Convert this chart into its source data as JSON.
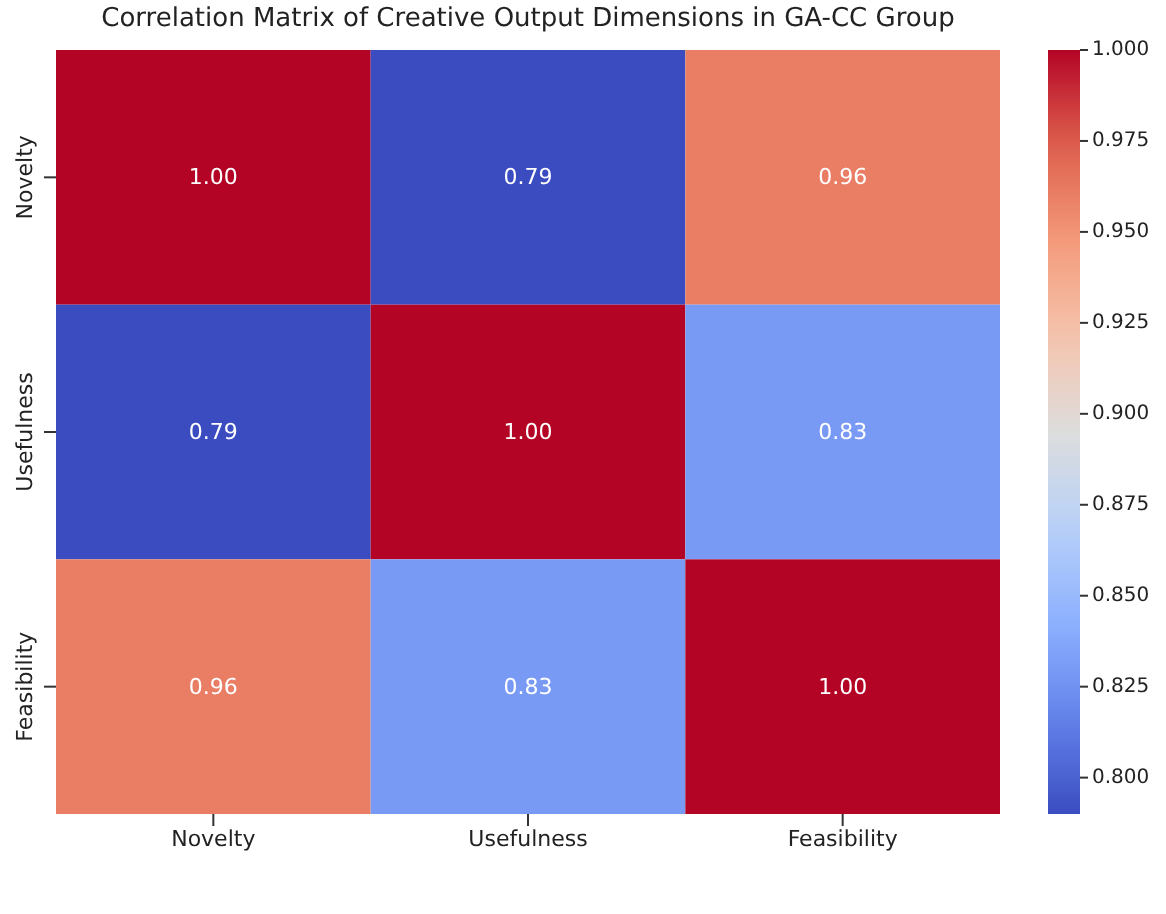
{
  "chart_data": {
    "type": "heatmap",
    "title": "Correlation Matrix of Creative Output Dimensions in GA-CC Group",
    "categories": [
      "Novelty",
      "Usefulness",
      "Feasibility"
    ],
    "y_categories": [
      "Novelty",
      "Usefulness",
      "Feasibility"
    ],
    "cells": [
      [
        1.0,
        0.79,
        0.96
      ],
      [
        0.79,
        1.0,
        0.83
      ],
      [
        0.96,
        0.83,
        1.0
      ]
    ],
    "cell_labels": [
      [
        "1.00",
        "0.79",
        "0.96"
      ],
      [
        "0.79",
        "1.00",
        "0.83"
      ],
      [
        "0.96",
        "0.83",
        "1.00"
      ]
    ],
    "clim": [
      0.79,
      1.0
    ],
    "cticks": [
      {
        "value": 0.8,
        "label": "0.800"
      },
      {
        "value": 0.825,
        "label": "0.825"
      },
      {
        "value": 0.85,
        "label": "0.850"
      },
      {
        "value": 0.875,
        "label": "0.875"
      },
      {
        "value": 0.9,
        "label": "0.900"
      },
      {
        "value": 0.925,
        "label": "0.925"
      },
      {
        "value": 0.95,
        "label": "0.950"
      },
      {
        "value": 0.975,
        "label": "0.975"
      },
      {
        "value": 1.0,
        "label": "1.000"
      }
    ]
  }
}
